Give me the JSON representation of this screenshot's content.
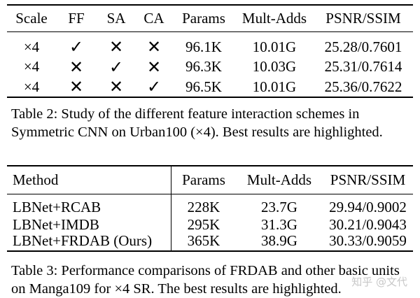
{
  "table2": {
    "headers": {
      "scale": "Scale",
      "ff": "FF",
      "sa": "SA",
      "ca": "CA",
      "params": "Params",
      "mult_adds": "Mult-Adds",
      "psnr_ssim": "PSNR/SSIM"
    },
    "rows": [
      {
        "scale": "×4",
        "ff": "✓",
        "sa": "✕",
        "ca": "✕",
        "params": "96.1K",
        "mult_adds": "10.01G",
        "psnr_ssim": "25.28/0.7601",
        "bold": false
      },
      {
        "scale": "×4",
        "ff": "✕",
        "sa": "✓",
        "ca": "✕",
        "params": "96.3K",
        "mult_adds": "10.03G",
        "psnr_ssim": "25.31/0.7614",
        "bold": false
      },
      {
        "scale": "×4",
        "ff": "✕",
        "sa": "✕",
        "ca": "✓",
        "params": "96.5K",
        "mult_adds": "10.01G",
        "psnr_ssim": "25.36/0.7622",
        "bold": true
      }
    ],
    "caption": "Table 2: Study of the different feature interaction schemes in Symmetric CNN on Urban100 (×4). Best results are highlighted."
  },
  "table3": {
    "headers": {
      "method": "Method",
      "params": "Params",
      "mult_adds": "Mult-Adds",
      "psnr_ssim": "PSNR/SSIM"
    },
    "rows": [
      {
        "method": "LBNet+RCAB",
        "params": "228K",
        "mult_adds": "23.7G",
        "psnr_ssim": "29.94/0.9002",
        "bold": false
      },
      {
        "method": "LBNet+IMDB",
        "params": "295K",
        "mult_adds": "31.3G",
        "psnr_ssim": "30.21/0.9043",
        "bold": false
      },
      {
        "method": "LBNet+FRDAB (Ours)",
        "params": "365K",
        "mult_adds": "38.9G",
        "psnr_ssim": "30.33/0.9059",
        "bold": true
      }
    ],
    "caption": "Table 3: Performance comparisons of FRDAB and other basic units on Manga109 for ×4 SR. The best results are highlighted."
  },
  "watermark": "知乎 @文代"
}
